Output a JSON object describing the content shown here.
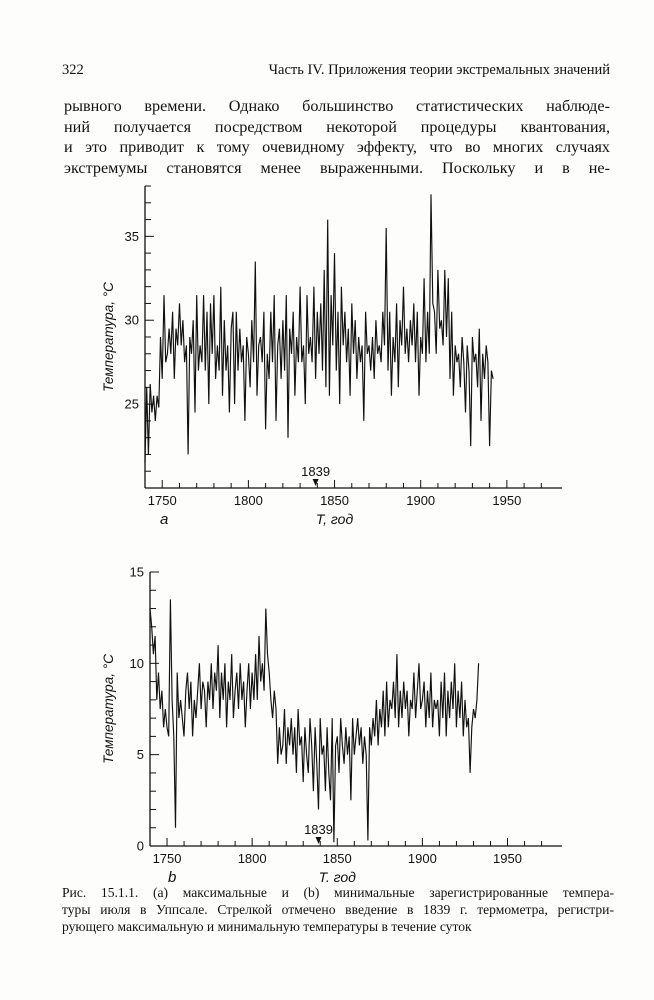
{
  "header": {
    "page_number": "322",
    "running_title": "Часть IV. Приложения теории экстремальных значений"
  },
  "paragraph_lines": [
    "рывного времени. Однако большинство статистических наблюде-",
    "ний получается посредством некоторой процедуры квантования,",
    "и это приводит к тому очевидному эффекту, что во многих случаях",
    "экстремумы становятся менее выраженными. Поскольку и в не-"
  ],
  "caption_lines": [
    "Рис. 15.1.1. (а) максимальные и (b) минимальные зарегистрированные темпера-",
    "туры июля в Уппсале. Стрелкой отмечено введение в 1839 г. термометра, регистри-",
    "рующего максимальную и минимальную температуры в течение суток"
  ],
  "chart_data": [
    {
      "type": "line",
      "panel_label": "a",
      "xlabel": "T, год",
      "ylabel": "Температура, °С",
      "xlim": [
        1740,
        1982
      ],
      "ylim": [
        20,
        38
      ],
      "x_ticks": [
        1750,
        1800,
        1850,
        1900,
        1950
      ],
      "y_ticks": [
        25,
        30,
        35
      ],
      "annotation": {
        "text": "1839",
        "x": 1839
      },
      "series": [
        {
          "x_start": 1740,
          "values": [
            21.5,
            26.0,
            22.0,
            26.2,
            24.5,
            25.5,
            24.0,
            25.5,
            24.8,
            29.0,
            26.5,
            31.5,
            27.5,
            28.0,
            29.5,
            28.0,
            30.5,
            26.5,
            29.5,
            28.5,
            31.0,
            28.5,
            30.0,
            27.5,
            28.5,
            22.0,
            29.0,
            28.0,
            30.0,
            24.5,
            31.5,
            27.0,
            28.5,
            27.5,
            31.5,
            27.0,
            30.5,
            25.0,
            31.0,
            28.0,
            31.5,
            26.5,
            28.5,
            27.0,
            32.0,
            25.5,
            30.0,
            27.0,
            28.5,
            24.5,
            29.5,
            30.5,
            25.0,
            30.5,
            27.0,
            29.5,
            27.5,
            28.5,
            24.0,
            29.0,
            28.0,
            26.0,
            30.0,
            27.5,
            33.5,
            25.5,
            28.5,
            29.0,
            27.5,
            30.5,
            23.5,
            28.0,
            26.5,
            30.5,
            27.5,
            31.5,
            24.0,
            28.5,
            29.5,
            26.5,
            30.0,
            27.0,
            31.5,
            23.0,
            29.5,
            28.0,
            30.5,
            25.5,
            29.0,
            27.5,
            32.0,
            27.5,
            28.5,
            25.0,
            31.5,
            28.0,
            29.0,
            27.5,
            32.0,
            26.5,
            30.5,
            28.0,
            31.0,
            27.0,
            33.0,
            26.0,
            36.0,
            25.5,
            31.5,
            28.5,
            34.0,
            27.0,
            30.5,
            25.0,
            32.0,
            28.5,
            30.5,
            27.5,
            29.5,
            25.5,
            31.0,
            28.0,
            30.0,
            26.5,
            29.0,
            27.5,
            28.5,
            24.0,
            30.5,
            28.0,
            28.5,
            27.0,
            29.0,
            26.5,
            30.0,
            28.0,
            28.5,
            27.5,
            30.5,
            28.5,
            35.5,
            27.0,
            30.5,
            25.5,
            29.0,
            27.5,
            31.0,
            26.0,
            30.0,
            28.5,
            32.0,
            28.0,
            29.5,
            27.5,
            30.0,
            28.5,
            31.0,
            27.5,
            30.5,
            25.5,
            29.0,
            28.0,
            32.5,
            27.5,
            30.5,
            28.0,
            37.5,
            31.0,
            30.5,
            28.0,
            33.0,
            29.5,
            30.0,
            28.5,
            33.0,
            29.0,
            32.5,
            26.5,
            30.5,
            25.5,
            28.5,
            27.5,
            28.0,
            26.0,
            29.0,
            27.5,
            24.5,
            28.5,
            27.0,
            22.5,
            29.0,
            27.5,
            28.0,
            26.0,
            29.5,
            24.0,
            28.0,
            26.5,
            28.5,
            27.5,
            22.5,
            27.0,
            26.5
          ]
        }
      ]
    },
    {
      "type": "line",
      "panel_label": "b",
      "xlabel": "T, год",
      "ylabel": "Температура, °С",
      "xlim": [
        1740,
        1982
      ],
      "ylim": [
        0,
        15
      ],
      "x_ticks": [
        1750,
        1800,
        1850,
        1900,
        1950
      ],
      "y_ticks": [
        0,
        5,
        10,
        15
      ],
      "annotation": {
        "text": "1839",
        "x": 1839
      },
      "series": [
        {
          "x_start": 1740,
          "values": [
            13.0,
            12.0,
            10.5,
            11.5,
            8.0,
            9.5,
            7.5,
            8.5,
            6.5,
            7.5,
            6.5,
            6.0,
            13.5,
            8.0,
            6.0,
            1.0,
            9.5,
            7.0,
            8.0,
            7.0,
            6.0,
            8.5,
            9.5,
            7.5,
            9.0,
            6.0,
            8.0,
            7.0,
            8.5,
            10.0,
            7.5,
            9.0,
            8.5,
            6.5,
            9.0,
            8.0,
            10.0,
            7.5,
            9.5,
            8.5,
            11.0,
            7.0,
            9.5,
            8.0,
            10.0,
            6.5,
            9.0,
            8.0,
            10.5,
            7.0,
            8.5,
            9.5,
            7.5,
            10.0,
            8.0,
            9.0,
            6.5,
            8.5,
            10.0,
            7.5,
            9.5,
            8.0,
            10.5,
            8.0,
            11.5,
            9.0,
            10.0,
            8.5,
            13.0,
            10.5,
            9.5,
            8.0,
            7.0,
            8.5,
            7.5,
            4.5,
            6.5,
            5.0,
            5.5,
            7.5,
            4.5,
            6.5,
            5.5,
            7.0,
            5.0,
            6.5,
            4.0,
            7.5,
            5.5,
            6.0,
            3.5,
            6.5,
            5.0,
            4.0,
            7.0,
            5.5,
            3.0,
            6.5,
            4.5,
            2.0,
            7.0,
            5.0,
            5.5,
            3.0,
            6.5,
            4.0,
            2.5,
            7.0,
            0.2,
            5.5,
            6.0,
            4.0,
            7.0,
            5.5,
            4.5,
            6.5,
            5.0,
            6.0,
            2.5,
            7.0,
            5.0,
            6.0,
            7.0,
            5.5,
            6.5,
            4.5,
            6.0,
            5.0,
            0.3,
            6.5,
            5.5,
            7.0,
            6.0,
            8.0,
            5.5,
            7.5,
            6.5,
            8.5,
            6.0,
            9.0,
            6.5,
            8.0,
            7.5,
            9.0,
            7.0,
            10.5,
            6.5,
            8.5,
            7.0,
            9.0,
            7.5,
            8.5,
            6.0,
            8.0,
            7.5,
            9.5,
            7.0,
            8.5,
            10.0,
            7.5,
            8.0,
            9.0,
            6.5,
            8.5,
            7.0,
            9.5,
            6.5,
            8.0,
            7.5,
            8.0,
            6.0,
            9.0,
            7.0,
            9.5,
            6.0,
            8.5,
            7.0,
            9.0,
            7.5,
            10.0,
            6.5,
            8.5,
            7.0,
            9.0,
            6.0,
            8.0,
            6.5,
            7.0,
            4.0,
            6.5,
            7.5,
            7.0,
            8.0,
            10.0
          ]
        }
      ]
    }
  ]
}
